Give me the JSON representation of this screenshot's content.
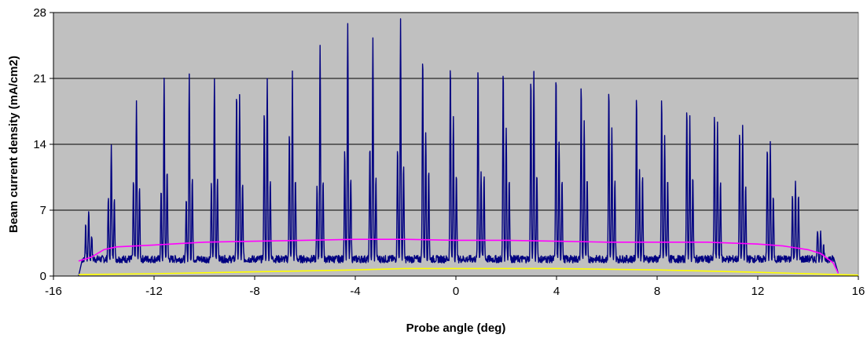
{
  "chart_data": {
    "type": "line",
    "title": "",
    "xlabel": "Probe angle (deg)",
    "ylabel": "Beam current density (mA/cm2)",
    "xlim": [
      -16,
      16
    ],
    "ylim": [
      0,
      28
    ],
    "x_ticks": [
      -16,
      -12,
      -8,
      -4,
      0,
      4,
      8,
      12,
      16
    ],
    "y_ticks": [
      0,
      7,
      14,
      21,
      28
    ],
    "x_tick_labels": [
      "-16",
      "-12",
      "-8",
      "-4",
      "0",
      "4",
      "8",
      "12",
      "16"
    ],
    "y_tick_labels": [
      "0",
      "7",
      "14",
      "21",
      "28"
    ],
    "grid": "horizontal",
    "plot_background": "#c0c0c0",
    "legend": "none",
    "series": [
      {
        "color": "#000080",
        "style": "peaks",
        "x_range": [
          -15,
          15.2
        ],
        "baseline": 1.8,
        "peak_groups": [
          {
            "x": -14.6,
            "peaks": [
              5.2,
              7.1,
              4.5
            ]
          },
          {
            "x": -13.7,
            "peaks": [
              8.4,
              14.3,
              8.7
            ]
          },
          {
            "x": -12.7,
            "peaks": [
              10.0,
              18.5,
              9.6
            ]
          },
          {
            "x": -11.6,
            "peaks": [
              9.0,
              21.2,
              11.5
            ]
          },
          {
            "x": -10.6,
            "peaks": [
              8.1,
              21.4,
              10.6
            ]
          },
          {
            "x": -9.6,
            "peaks": [
              9.8,
              21.2,
              10.6
            ]
          },
          {
            "x": -8.6,
            "peaks": [
              19.6,
              19.4,
              9.8
            ]
          },
          {
            "x": -7.5,
            "peaks": [
              17.5,
              21.0,
              10.6
            ]
          },
          {
            "x": -6.5,
            "peaks": [
              15.5,
              21.5,
              10.6
            ]
          },
          {
            "x": -5.4,
            "peaks": [
              9.5,
              24.5,
              10.2
            ]
          },
          {
            "x": -4.3,
            "peaks": [
              13.5,
              26.8,
              10.9
            ]
          },
          {
            "x": -3.3,
            "peaks": [
              14.0,
              25.2,
              10.5
            ]
          },
          {
            "x": -2.2,
            "peaks": [
              14.0,
              27.2,
              12.0
            ]
          },
          {
            "x": -1.2,
            "peaks": [
              23.5,
              15.5,
              11.4
            ]
          },
          {
            "x": -0.1,
            "peaks": [
              22.8,
              17.0,
              11.0
            ]
          },
          {
            "x": 1.0,
            "peaks": [
              22.4,
              11.2,
              10.8
            ]
          },
          {
            "x": 2.0,
            "peaks": [
              22.0,
              16.0,
              10.5
            ]
          },
          {
            "x": 3.1,
            "peaks": [
              21.5,
              21.7,
              11.0
            ]
          },
          {
            "x": 4.1,
            "peaks": [
              21.6,
              14.5,
              10.5
            ]
          },
          {
            "x": 5.1,
            "peaks": [
              20.5,
              16.5,
              10.6
            ]
          },
          {
            "x": 6.2,
            "peaks": [
              20.0,
              15.5,
              10.5
            ]
          },
          {
            "x": 7.3,
            "peaks": [
              19.4,
              11.0,
              10.5
            ]
          },
          {
            "x": 8.3,
            "peaks": [
              18.9,
              15.0,
              10.6
            ]
          },
          {
            "x": 9.3,
            "peaks": [
              18.2,
              17.0,
              10.6
            ]
          },
          {
            "x": 10.4,
            "peaks": [
              17.2,
              16.5,
              10.1
            ]
          },
          {
            "x": 11.4,
            "peaks": [
              15.4,
              16.0,
              9.6
            ]
          },
          {
            "x": 12.5,
            "peaks": [
              13.7,
              14.0,
              8.5
            ]
          },
          {
            "x": 13.5,
            "peaks": [
              8.7,
              10.3,
              8.5
            ]
          },
          {
            "x": 14.5,
            "peaks": [
              5.2,
              4.8,
              3.0
            ]
          }
        ]
      },
      {
        "color": "#ff00ff",
        "style": "smooth",
        "x": [
          -15.0,
          -14.5,
          -14.0,
          -13.5,
          -12.0,
          -10.0,
          -8.0,
          -6.0,
          -4.0,
          -2.0,
          0.0,
          2.0,
          4.0,
          6.0,
          8.0,
          10.0,
          12.0,
          13.0,
          14.0,
          14.5,
          15.0,
          15.2
        ],
        "y": [
          1.6,
          2.0,
          2.8,
          3.1,
          3.3,
          3.6,
          3.7,
          3.8,
          3.9,
          3.9,
          3.8,
          3.8,
          3.7,
          3.6,
          3.6,
          3.6,
          3.4,
          3.2,
          2.8,
          2.4,
          1.4,
          0.3
        ]
      },
      {
        "color": "#ffff00",
        "style": "smooth",
        "x": [
          -15.0,
          -12.0,
          -8.0,
          -4.0,
          -2.0,
          0.0,
          4.0,
          8.0,
          12.0,
          15.2,
          16.0
        ],
        "y": [
          0.15,
          0.25,
          0.45,
          0.65,
          0.8,
          0.8,
          0.8,
          0.65,
          0.4,
          0.15,
          0.1
        ]
      }
    ]
  }
}
